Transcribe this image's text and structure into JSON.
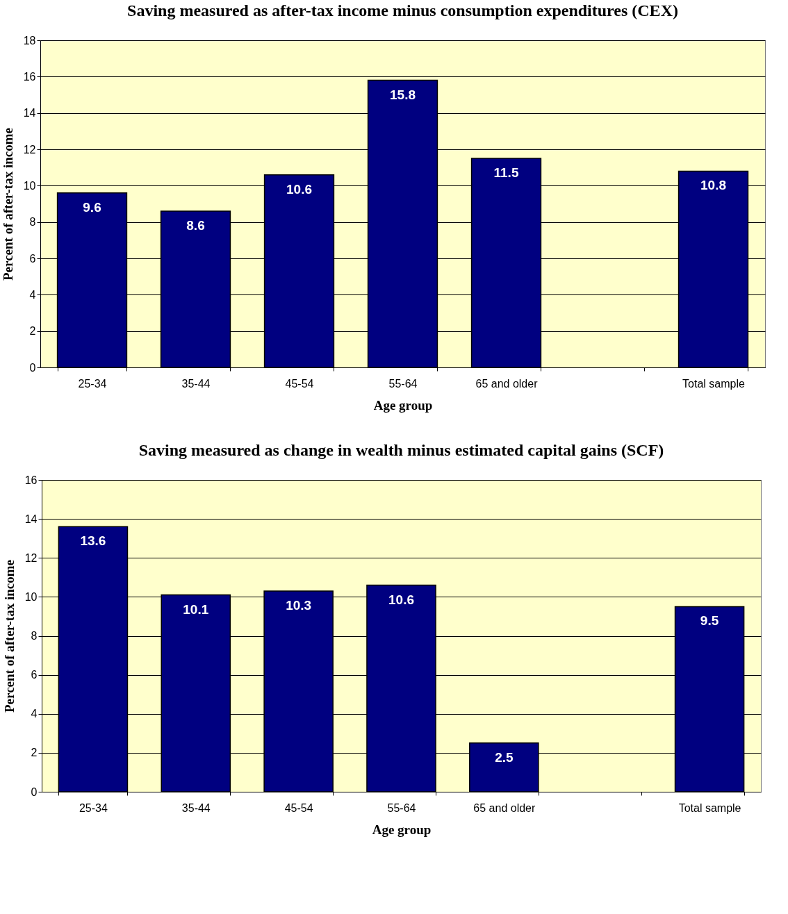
{
  "chart_data": [
    {
      "type": "bar",
      "title": "Saving measured as after-tax income minus consumption expenditures (CEX)",
      "xlabel": "Age group",
      "ylabel": "Percent of after-tax income",
      "categories": [
        "25-34",
        "35-44",
        "45-54",
        "55-64",
        "65 and older",
        null,
        "Total sample"
      ],
      "series": [
        {
          "color": "#000080",
          "values": [
            9.6,
            8.6,
            10.6,
            15.8,
            11.5,
            null,
            10.8
          ]
        }
      ],
      "ylim": [
        0,
        18
      ],
      "yticks": [
        0,
        2,
        4,
        6,
        8,
        10,
        12,
        14,
        16,
        18
      ],
      "grid": "y",
      "data_labels": true
    },
    {
      "type": "bar",
      "title": "Saving measured as change in wealth minus estimated capital gains (SCF)",
      "xlabel": "Age group",
      "ylabel": "Percent of after-tax income",
      "categories": [
        "25-34",
        "35-44",
        "45-54",
        "55-64",
        "65 and older",
        null,
        "Total sample"
      ],
      "series": [
        {
          "color": "#000080",
          "values": [
            13.6,
            10.1,
            10.3,
            10.6,
            2.5,
            null,
            9.5
          ]
        }
      ],
      "ylim": [
        0,
        16
      ],
      "yticks": [
        0,
        2,
        4,
        6,
        8,
        10,
        12,
        14,
        16
      ],
      "grid": "y",
      "data_labels": true
    }
  ]
}
